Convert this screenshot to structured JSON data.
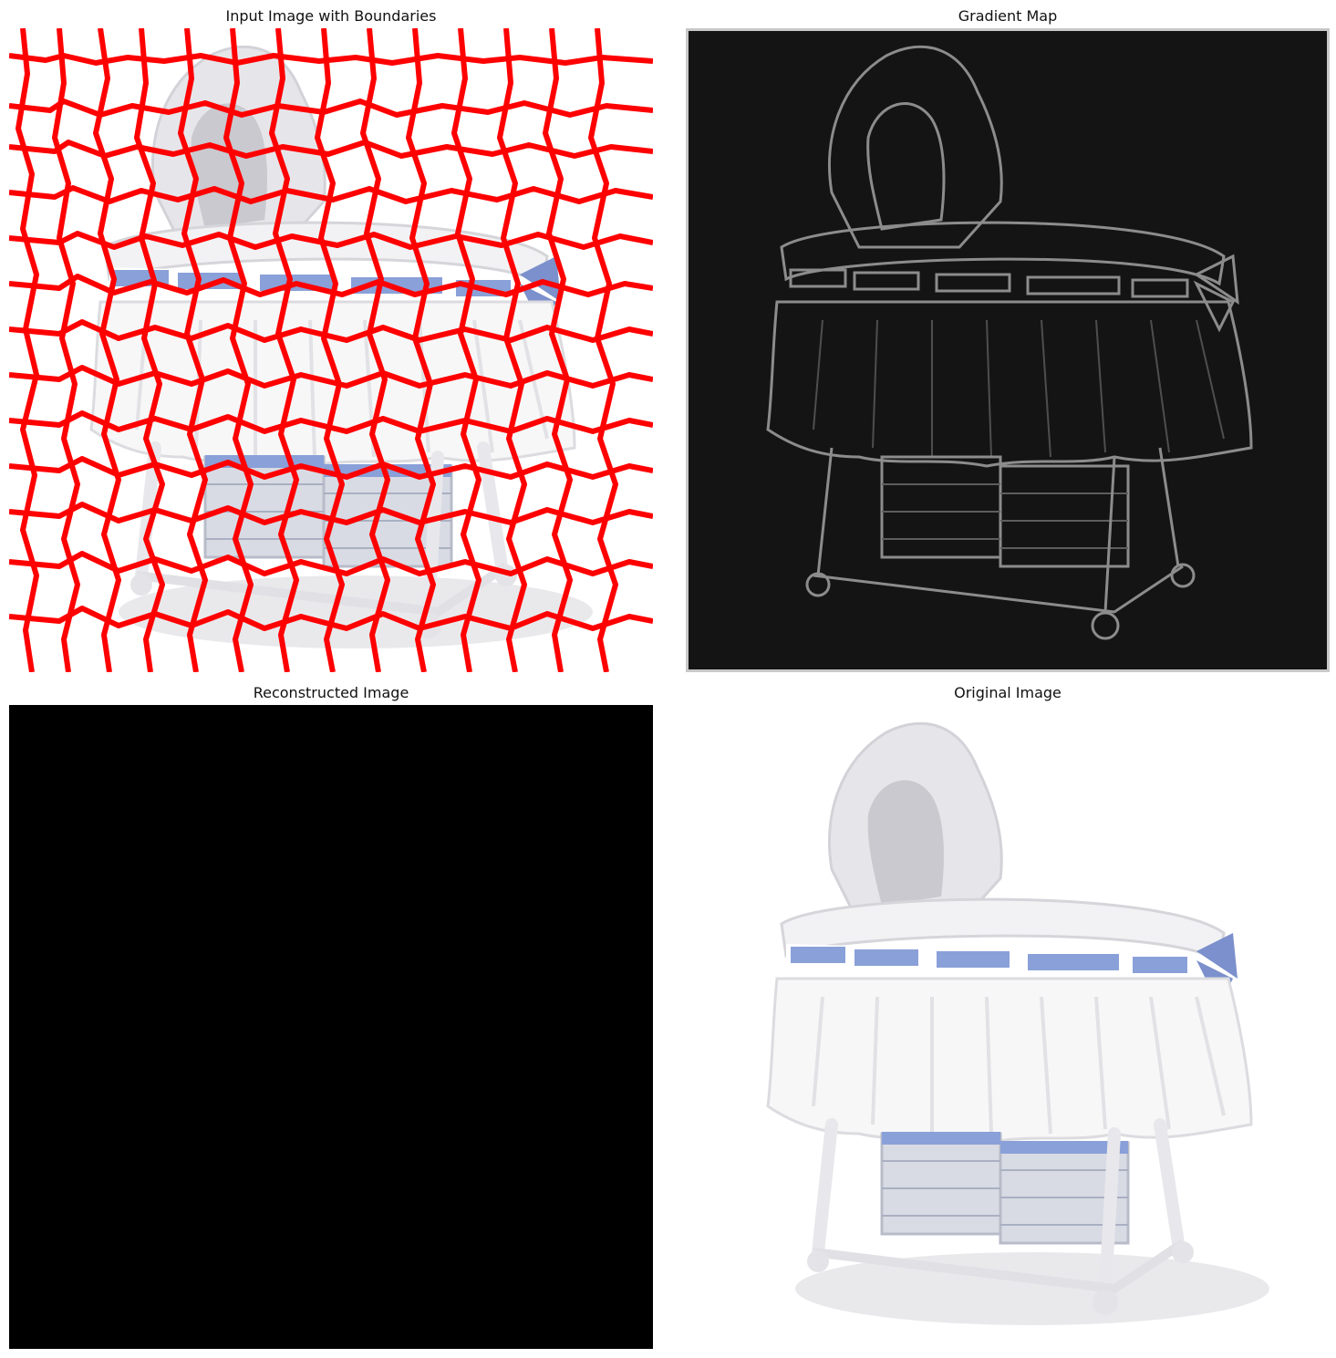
{
  "panels": [
    {
      "title": "Input Image with Boundaries"
    },
    {
      "title": "Gradient Map"
    },
    {
      "title": "Reconstructed Image"
    },
    {
      "title": "Original Image"
    }
  ],
  "colors": {
    "boundary": "#ff0000",
    "gradient_background": "#141414",
    "reconstructed_background": "#000000",
    "ribbon": "#8aa0d8"
  },
  "icons": [
    "bassinet-illustration"
  ]
}
